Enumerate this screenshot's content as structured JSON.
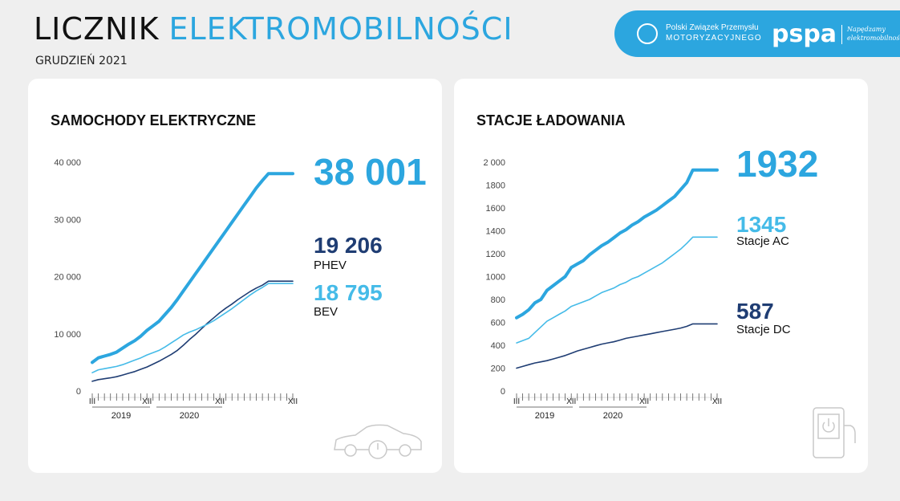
{
  "header": {
    "title_dark": "LICZNIK",
    "title_blue": "ELEKTROMOBILNOŚCI",
    "subtitle": "GRUDZIEŃ 2021"
  },
  "banner": {
    "pzpm_line1": "Polski Związek Przemysłu",
    "pzpm_line2": "MOTORYZACYJNEGO",
    "pspa": "pspa",
    "tagline_line1": "Napędzamy",
    "tagline_line2": "elektromobilność!"
  },
  "colors": {
    "accent": "#2ca6df",
    "light": "#45bbe8",
    "dark": "#1f3d73"
  },
  "chart_data": [
    {
      "type": "line",
      "title": "SAMOCHODY ELEKTRYCZNE",
      "ylim": [
        0,
        40000
      ],
      "yticks": [
        "40 000",
        "30 000",
        "20 000",
        "10 000",
        "0"
      ],
      "ytick_values": [
        40000,
        30000,
        20000,
        10000,
        0
      ],
      "x_tick_labels": [
        "III",
        "XII",
        "XII",
        "XII"
      ],
      "x_tick_index": [
        0,
        9,
        21,
        33
      ],
      "years": [
        "2019",
        "2020"
      ],
      "totals": {
        "total": "38 001",
        "phev_value": "19 206",
        "phev_label": "PHEV",
        "bev_value": "18 795",
        "bev_label": "BEV"
      },
      "series": [
        {
          "key": "total",
          "values": [
            5000,
            5800,
            6100,
            6400,
            6800,
            7500,
            8200,
            8800,
            9600,
            10600,
            11400,
            12200,
            13400,
            14600,
            16000,
            17500,
            19000,
            20500,
            22000,
            23500,
            25000,
            26500,
            28000,
            29500,
            31000,
            32500,
            34000,
            35500,
            36800,
            38001,
            38001,
            38001,
            38001,
            38001
          ]
        },
        {
          "key": "phev",
          "values": [
            1700,
            2000,
            2150,
            2300,
            2500,
            2800,
            3100,
            3400,
            3800,
            4200,
            4700,
            5200,
            5800,
            6400,
            7100,
            8000,
            9000,
            9900,
            10900,
            11900,
            12800,
            13700,
            14500,
            15200,
            16000,
            16700,
            17400,
            18000,
            18500,
            19206,
            19206,
            19206,
            19206,
            19206
          ]
        },
        {
          "key": "bev",
          "values": [
            3200,
            3700,
            3900,
            4100,
            4300,
            4600,
            5000,
            5400,
            5800,
            6300,
            6700,
            7100,
            7700,
            8400,
            9100,
            9800,
            10300,
            10700,
            11200,
            11700,
            12300,
            13000,
            13700,
            14400,
            15200,
            16000,
            16800,
            17500,
            18100,
            18795,
            18795,
            18795,
            18795,
            18795
          ]
        }
      ]
    },
    {
      "type": "line",
      "title": "STACJE ŁADOWANIA",
      "ylim": [
        0,
        2000
      ],
      "yticks": [
        "2 000",
        "1800",
        "1600",
        "1400",
        "1200",
        "1000",
        "800",
        "600",
        "400",
        "200",
        "0"
      ],
      "ytick_values": [
        2000,
        1800,
        1600,
        1400,
        1200,
        1000,
        800,
        600,
        400,
        200,
        0
      ],
      "x_tick_labels": [
        "III",
        "XII",
        "XII",
        "XII"
      ],
      "x_tick_index": [
        0,
        9,
        21,
        33
      ],
      "years": [
        "2019",
        "2020"
      ],
      "totals": {
        "total": "1932",
        "ac_value": "1345",
        "ac_label": "Stacje AC",
        "dc_value": "587",
        "dc_label": "Stacje DC"
      },
      "series": [
        {
          "key": "total",
          "values": [
            640,
            670,
            710,
            770,
            800,
            880,
            920,
            960,
            1000,
            1080,
            1110,
            1140,
            1190,
            1230,
            1270,
            1300,
            1340,
            1380,
            1410,
            1450,
            1480,
            1520,
            1550,
            1580,
            1620,
            1660,
            1700,
            1760,
            1820,
            1932,
            1932,
            1932,
            1932,
            1932
          ]
        },
        {
          "key": "ac",
          "values": [
            420,
            440,
            460,
            510,
            560,
            610,
            640,
            670,
            700,
            740,
            760,
            780,
            800,
            830,
            860,
            880,
            900,
            930,
            950,
            980,
            1000,
            1030,
            1060,
            1090,
            1120,
            1160,
            1200,
            1240,
            1290,
            1345,
            1345,
            1345,
            1345,
            1345
          ]
        },
        {
          "key": "dc",
          "values": [
            200,
            215,
            230,
            245,
            255,
            265,
            280,
            295,
            310,
            330,
            350,
            365,
            380,
            395,
            410,
            420,
            430,
            445,
            460,
            470,
            480,
            490,
            500,
            510,
            520,
            530,
            540,
            550,
            565,
            587,
            587,
            587,
            587,
            587
          ]
        }
      ]
    }
  ]
}
